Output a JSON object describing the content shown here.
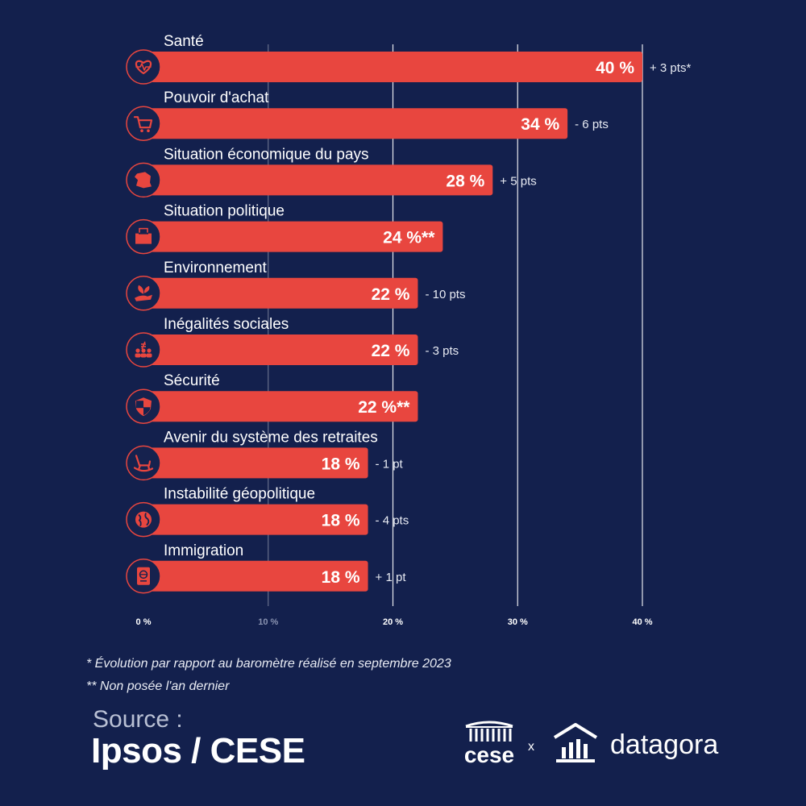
{
  "chart_data": {
    "type": "bar",
    "orientation": "horizontal",
    "value_unit": "%",
    "xlim": [
      0,
      40
    ],
    "x_ticks": [
      0,
      10,
      20,
      30,
      40
    ],
    "x_tick_labels": [
      "0 %",
      "10 %",
      "20 %",
      "30 %",
      "40 %"
    ],
    "categories": [
      "Santé",
      "Pouvoir d'achat",
      "Situation économique du pays",
      "Situation politique",
      "Environnement",
      "Inégalités sociales",
      "Sécurité",
      "Avenir du système des retraites",
      "Instabilité géopolitique",
      "Immigration"
    ],
    "values": [
      40,
      34,
      28,
      24,
      22,
      22,
      22,
      18,
      18,
      18
    ],
    "value_labels": [
      "40 %",
      "34 %",
      "28 %",
      "24 %**",
      "22 %",
      "22 %",
      "22 %**",
      "18 %",
      "18 %",
      "18 %"
    ],
    "changes": [
      "+ 3 pts*",
      "- 6 pts",
      "+ 5 pts",
      "",
      "- 10 pts",
      "- 3 pts",
      "",
      "- 1 pt",
      "- 4 pts",
      "+ 1 pt"
    ],
    "icons": [
      "heart-pulse-icon",
      "shopping-cart-icon",
      "france-map-icon",
      "ballot-box-icon",
      "hand-plant-icon",
      "people-inequality-icon",
      "shield-icon",
      "rocking-chair-icon",
      "globe-icon",
      "passport-icon"
    ],
    "colors": {
      "bar": "#e8463f",
      "background": "#13204d",
      "icon_bg": "#16224e",
      "grid": "#ffffff"
    }
  },
  "footnotes": {
    "note1": "* Évolution par rapport au baromètre réalisé en septembre 2023",
    "note2": "** Non posée l'an dernier"
  },
  "source": {
    "label": "Source :",
    "name": "Ipsos / CESE"
  },
  "logos": {
    "cese": "cese",
    "separator": "x",
    "datagora": "datagora"
  }
}
